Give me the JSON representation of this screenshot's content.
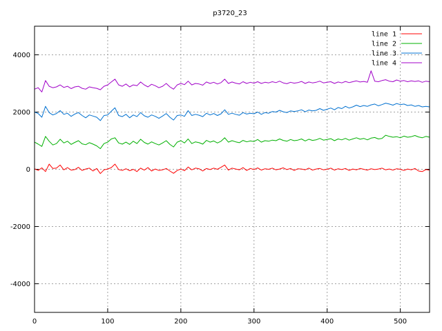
{
  "chart_data": {
    "type": "line",
    "title": "p3720_23",
    "xlabel": "",
    "ylabel": "",
    "xlim": [
      0,
      540
    ],
    "ylim": [
      -5000,
      5000
    ],
    "x_ticks": [
      0,
      100,
      200,
      300,
      400,
      500
    ],
    "y_ticks": [
      -4000,
      -2000,
      0,
      2000,
      4000
    ],
    "grid": true,
    "legend_position": "top-right",
    "series": [
      {
        "name": "line 1",
        "color": "#ff0000",
        "x": [
          0,
          5,
          10,
          15,
          20,
          25,
          30,
          35,
          40,
          45,
          50,
          55,
          60,
          65,
          70,
          75,
          80,
          85,
          90,
          95,
          100,
          105,
          110,
          115,
          120,
          125,
          130,
          135,
          140,
          145,
          150,
          155,
          160,
          165,
          170,
          175,
          180,
          185,
          190,
          195,
          200,
          205,
          210,
          215,
          220,
          225,
          230,
          235,
          240,
          245,
          250,
          255,
          260,
          265,
          270,
          275,
          280,
          285,
          290,
          295,
          300,
          305,
          310,
          315,
          320,
          325,
          330,
          335,
          340,
          345,
          350,
          355,
          360,
          365,
          370,
          375,
          380,
          385,
          390,
          395,
          400,
          405,
          410,
          415,
          420,
          425,
          430,
          435,
          440,
          445,
          450,
          455,
          460,
          465,
          470,
          475,
          480,
          485,
          490,
          495,
          500,
          505,
          510,
          515,
          520,
          525,
          530,
          535,
          540
        ],
        "values": [
          20,
          -40,
          50,
          -80,
          180,
          30,
          40,
          150,
          -20,
          60,
          -30,
          -10,
          70,
          -40,
          10,
          40,
          -60,
          30,
          -150,
          -20,
          10,
          60,
          180,
          -10,
          -40,
          20,
          -50,
          0,
          -80,
          40,
          -30,
          60,
          -60,
          10,
          -40,
          -20,
          30,
          -60,
          -140,
          -40,
          10,
          -50,
          80,
          -20,
          40,
          20,
          -60,
          30,
          -10,
          40,
          0,
          70,
          150,
          -30,
          40,
          10,
          -20,
          60,
          -40,
          30,
          -10,
          50,
          -30,
          20,
          0,
          40,
          -20,
          10,
          50,
          -10,
          30,
          -40,
          20,
          10,
          -20,
          40,
          -30,
          10,
          30,
          -20,
          0,
          40,
          -30,
          20,
          -10,
          30,
          -40,
          10,
          -20,
          30,
          0,
          -30,
          20,
          -10,
          10,
          40,
          -20,
          10,
          -30,
          20,
          0,
          -40,
          10,
          -20,
          30,
          -60,
          -80,
          -10,
          -30
        ]
      },
      {
        "name": "line 2",
        "color": "#00b000",
        "x": [
          0,
          5,
          10,
          15,
          20,
          25,
          30,
          35,
          40,
          45,
          50,
          55,
          60,
          65,
          70,
          75,
          80,
          85,
          90,
          95,
          100,
          105,
          110,
          115,
          120,
          125,
          130,
          135,
          140,
          145,
          150,
          155,
          160,
          165,
          170,
          175,
          180,
          185,
          190,
          195,
          200,
          205,
          210,
          215,
          220,
          225,
          230,
          235,
          240,
          245,
          250,
          255,
          260,
          265,
          270,
          275,
          280,
          285,
          290,
          295,
          300,
          305,
          310,
          315,
          320,
          325,
          330,
          335,
          340,
          345,
          350,
          355,
          360,
          365,
          370,
          375,
          380,
          385,
          390,
          395,
          400,
          405,
          410,
          415,
          420,
          425,
          430,
          435,
          440,
          445,
          450,
          455,
          460,
          465,
          470,
          475,
          480,
          485,
          490,
          495,
          500,
          505,
          510,
          515,
          520,
          525,
          530,
          535,
          540
        ],
        "values": [
          950,
          880,
          800,
          1150,
          980,
          850,
          900,
          1050,
          920,
          980,
          870,
          940,
          1000,
          890,
          860,
          930,
          880,
          820,
          720,
          900,
          950,
          1060,
          1100,
          920,
          880,
          950,
          870,
          980,
          900,
          1050,
          940,
          880,
          960,
          900,
          850,
          920,
          1000,
          870,
          780,
          950,
          1000,
          920,
          1060,
          900,
          960,
          930,
          880,
          1010,
          950,
          990,
          920,
          980,
          1100,
          950,
          1000,
          960,
          930,
          1010,
          960,
          990,
          970,
          1040,
          950,
          1000,
          980,
          1020,
          1000,
          1060,
          1010,
          980,
          1040,
          1000,
          1020,
          1060,
          990,
          1050,
          1010,
          1030,
          1080,
          1020,
          1040,
          1070,
          1000,
          1060,
          1030,
          1080,
          1020,
          1060,
          1100,
          1050,
          1080,
          1030,
          1090,
          1110,
          1060,
          1080,
          1190,
          1150,
          1120,
          1140,
          1100,
          1160,
          1120,
          1140,
          1180,
          1130,
          1100,
          1150,
          1120
        ]
      },
      {
        "name": "line 3",
        "color": "#0070d0",
        "x": [
          0,
          5,
          10,
          15,
          20,
          25,
          30,
          35,
          40,
          45,
          50,
          55,
          60,
          65,
          70,
          75,
          80,
          85,
          90,
          95,
          100,
          105,
          110,
          115,
          120,
          125,
          130,
          135,
          140,
          145,
          150,
          155,
          160,
          165,
          170,
          175,
          180,
          185,
          190,
          195,
          200,
          205,
          210,
          215,
          220,
          225,
          230,
          235,
          240,
          245,
          250,
          255,
          260,
          265,
          270,
          275,
          280,
          285,
          290,
          295,
          300,
          305,
          310,
          315,
          320,
          325,
          330,
          335,
          340,
          345,
          350,
          355,
          360,
          365,
          370,
          375,
          380,
          385,
          390,
          395,
          400,
          405,
          410,
          415,
          420,
          425,
          430,
          435,
          440,
          445,
          450,
          455,
          460,
          465,
          470,
          475,
          480,
          485,
          490,
          495,
          500,
          505,
          510,
          515,
          520,
          525,
          530,
          535,
          540
        ],
        "values": [
          2000,
          1950,
          1820,
          2200,
          1980,
          1900,
          1950,
          2050,
          1920,
          1960,
          1850,
          1930,
          1980,
          1880,
          1800,
          1900,
          1860,
          1820,
          1700,
          1880,
          1900,
          2030,
          2150,
          1880,
          1840,
          1920,
          1800,
          1900,
          1840,
          1980,
          1870,
          1820,
          1900,
          1850,
          1780,
          1860,
          1950,
          1820,
          1720,
          1880,
          1900,
          1850,
          2050,
          1880,
          1920,
          1890,
          1840,
          1960,
          1900,
          1950,
          1880,
          1940,
          2080,
          1920,
          1960,
          1920,
          1890,
          1980,
          1930,
          1960,
          1940,
          2000,
          1920,
          1980,
          1960,
          2020,
          2000,
          2060,
          2010,
          1980,
          2040,
          2020,
          2040,
          2080,
          2010,
          2070,
          2040,
          2060,
          2120,
          2060,
          2100,
          2140,
          2080,
          2160,
          2120,
          2200,
          2140,
          2180,
          2240,
          2190,
          2230,
          2200,
          2250,
          2280,
          2220,
          2260,
          2310,
          2280,
          2240,
          2300,
          2260,
          2280,
          2230,
          2250,
          2200,
          2230,
          2180,
          2200,
          2180
        ]
      },
      {
        "name": "line 4",
        "color": "#a000c8",
        "x": [
          0,
          5,
          10,
          15,
          20,
          25,
          30,
          35,
          40,
          45,
          50,
          55,
          60,
          65,
          70,
          75,
          80,
          85,
          90,
          95,
          100,
          105,
          110,
          115,
          120,
          125,
          130,
          135,
          140,
          145,
          150,
          155,
          160,
          165,
          170,
          175,
          180,
          185,
          190,
          195,
          200,
          205,
          210,
          215,
          220,
          225,
          230,
          235,
          240,
          245,
          250,
          255,
          260,
          265,
          270,
          275,
          280,
          285,
          290,
          295,
          300,
          305,
          310,
          315,
          320,
          325,
          330,
          335,
          340,
          345,
          350,
          355,
          360,
          365,
          370,
          375,
          380,
          385,
          390,
          395,
          400,
          405,
          410,
          415,
          420,
          425,
          430,
          435,
          440,
          445,
          450,
          455,
          460,
          465,
          470,
          475,
          480,
          485,
          490,
          495,
          500,
          505,
          510,
          515,
          520,
          525,
          530,
          535,
          540
        ],
        "values": [
          2800,
          2850,
          2700,
          3100,
          2900,
          2850,
          2880,
          2950,
          2860,
          2900,
          2820,
          2880,
          2900,
          2830,
          2800,
          2880,
          2850,
          2830,
          2780,
          2900,
          2950,
          3050,
          3150,
          2950,
          2900,
          2980,
          2880,
          2950,
          2920,
          3050,
          2950,
          2880,
          2970,
          2920,
          2850,
          2900,
          3000,
          2880,
          2800,
          2950,
          3000,
          2960,
          3080,
          2950,
          3000,
          2980,
          2940,
          3050,
          3000,
          3040,
          2980,
          3030,
          3150,
          3000,
          3050,
          3010,
          2980,
          3060,
          3000,
          3040,
          3010,
          3060,
          3000,
          3040,
          3020,
          3060,
          3030,
          3080,
          3020,
          2990,
          3040,
          3010,
          3030,
          3070,
          3000,
          3050,
          3020,
          3040,
          3080,
          3020,
          3040,
          3060,
          3000,
          3050,
          3020,
          3070,
          3030,
          3060,
          3090,
          3050,
          3070,
          3040,
          3440,
          3080,
          3060,
          3100,
          3130,
          3080,
          3060,
          3120,
          3080,
          3100,
          3060,
          3090,
          3070,
          3090,
          3040,
          3080,
          3060
        ]
      }
    ]
  }
}
